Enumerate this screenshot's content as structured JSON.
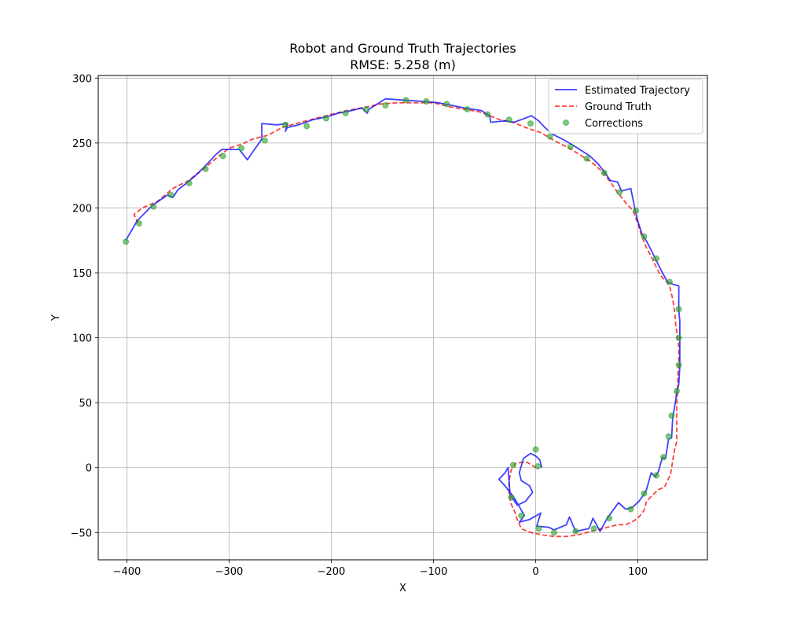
{
  "chart_data": {
    "type": "line",
    "title": "Robot and Ground Truth Trajectories",
    "subtitle": "RMSE: 5.258 (m)",
    "xlabel": "X",
    "ylabel": "Y",
    "xlim": [
      -428,
      168
    ],
    "ylim": [
      -71,
      302
    ],
    "xticks": [
      -400,
      -300,
      -200,
      -100,
      0,
      100
    ],
    "xtick_labels": [
      "−400",
      "−300",
      "−200",
      "−100",
      "0",
      "100"
    ],
    "yticks": [
      -50,
      0,
      50,
      100,
      150,
      200,
      250,
      300
    ],
    "ytick_labels": [
      "−50",
      "0",
      "50",
      "100",
      "150",
      "200",
      "250",
      "300"
    ],
    "grid": true,
    "legend_position": "top-right",
    "series": [
      {
        "name": "Estimated Trajectory",
        "style": "solid",
        "color": "#0000ff",
        "points": [
          [
            6,
            0
          ],
          [
            4,
            6
          ],
          [
            0,
            9
          ],
          [
            -5,
            11
          ],
          [
            -12,
            7
          ],
          [
            -16,
            -4
          ],
          [
            -14,
            -10
          ],
          [
            -6,
            -14
          ],
          [
            -3,
            -19
          ],
          [
            -10,
            -26
          ],
          [
            -18,
            -29
          ],
          [
            -25,
            -21
          ],
          [
            -27,
            0
          ],
          [
            -30,
            -4
          ],
          [
            -36,
            -9
          ],
          [
            -30,
            -14
          ],
          [
            -22,
            -22
          ],
          [
            -16,
            -30
          ],
          [
            -11,
            -37
          ],
          [
            -16,
            -42
          ],
          [
            -6,
            -40
          ],
          [
            5,
            -35
          ],
          [
            1,
            -45
          ],
          [
            13,
            -46
          ],
          [
            18,
            -48
          ],
          [
            30,
            -44
          ],
          [
            33,
            -38
          ],
          [
            39,
            -49
          ],
          [
            52,
            -47
          ],
          [
            56,
            -39
          ],
          [
            63,
            -49
          ],
          [
            70,
            -39
          ],
          [
            81,
            -27
          ],
          [
            88,
            -32
          ],
          [
            94,
            -31
          ],
          [
            101,
            -26
          ],
          [
            108,
            -18
          ],
          [
            113,
            -4
          ],
          [
            117,
            -7
          ],
          [
            120,
            -3
          ],
          [
            124,
            8
          ],
          [
            127,
            7
          ],
          [
            130,
            22
          ],
          [
            133,
            23
          ],
          [
            134,
            38
          ],
          [
            137,
            52
          ],
          [
            138,
            59
          ],
          [
            140,
            64
          ],
          [
            141,
            78
          ],
          [
            141,
            100
          ],
          [
            141,
            113
          ],
          [
            140,
            121
          ],
          [
            140,
            140
          ],
          [
            135,
            141
          ],
          [
            129,
            143
          ],
          [
            124,
            150
          ],
          [
            117,
            161
          ],
          [
            112,
            169
          ],
          [
            108,
            175
          ],
          [
            104,
            180
          ],
          [
            99,
            192
          ],
          [
            93,
            215
          ],
          [
            84,
            213
          ],
          [
            80,
            220
          ],
          [
            73,
            221
          ],
          [
            68,
            227
          ],
          [
            61,
            234
          ],
          [
            53,
            240
          ],
          [
            45,
            244
          ],
          [
            35,
            249
          ],
          [
            26,
            253
          ],
          [
            16,
            257
          ],
          [
            9,
            262
          ],
          [
            3,
            267
          ],
          [
            -4,
            271
          ],
          [
            -21,
            266
          ],
          [
            -30,
            267
          ],
          [
            -44,
            266
          ],
          [
            -45,
            271
          ],
          [
            -53,
            275
          ],
          [
            -62,
            276
          ],
          [
            -70,
            277
          ],
          [
            -82,
            279
          ],
          [
            -95,
            281
          ],
          [
            -110,
            282
          ],
          [
            -128,
            283
          ],
          [
            -147,
            284
          ],
          [
            -163,
            276
          ],
          [
            -165,
            273
          ],
          [
            -170,
            277
          ],
          [
            -180,
            275
          ],
          [
            -193,
            273
          ],
          [
            -205,
            270
          ],
          [
            -218,
            268
          ],
          [
            -232,
            264
          ],
          [
            -243,
            262
          ],
          [
            -245,
            259
          ],
          [
            -243,
            265
          ],
          [
            -253,
            264
          ],
          [
            -268,
            265
          ],
          [
            -268,
            253
          ],
          [
            -277,
            243
          ],
          [
            -282,
            237
          ],
          [
            -290,
            245
          ],
          [
            -307,
            245
          ],
          [
            -313,
            241
          ],
          [
            -320,
            235
          ],
          [
            -330,
            227
          ],
          [
            -340,
            220
          ],
          [
            -350,
            214
          ],
          [
            -355,
            208
          ],
          [
            -360,
            210
          ],
          [
            -375,
            202
          ],
          [
            -390,
            190
          ],
          [
            -401,
            175
          ]
        ]
      },
      {
        "name": "Ground Truth",
        "style": "dashed",
        "color": "#ff0000",
        "points": [
          [
            -389,
            188
          ],
          [
            -393,
            195
          ],
          [
            -385,
            200
          ],
          [
            -370,
            205
          ],
          [
            -355,
            215
          ],
          [
            -340,
            221
          ],
          [
            -325,
            230
          ],
          [
            -310,
            240
          ],
          [
            -300,
            246
          ],
          [
            -288,
            249
          ],
          [
            -277,
            253
          ],
          [
            -262,
            256
          ],
          [
            -248,
            262
          ],
          [
            -230,
            266
          ],
          [
            -215,
            269
          ],
          [
            -200,
            272
          ],
          [
            -185,
            275
          ],
          [
            -170,
            277
          ],
          [
            -152,
            280
          ],
          [
            -135,
            281
          ],
          [
            -118,
            281
          ],
          [
            -100,
            281
          ],
          [
            -85,
            278
          ],
          [
            -70,
            276
          ],
          [
            -55,
            274
          ],
          [
            -45,
            271
          ],
          [
            -35,
            268
          ],
          [
            -22,
            266
          ],
          [
            -10,
            262
          ],
          [
            5,
            258
          ],
          [
            20,
            251
          ],
          [
            33,
            246
          ],
          [
            45,
            240
          ],
          [
            55,
            235
          ],
          [
            65,
            228
          ],
          [
            73,
            220
          ],
          [
            80,
            212
          ],
          [
            87,
            205
          ],
          [
            95,
            198
          ],
          [
            100,
            188
          ],
          [
            103,
            180
          ],
          [
            108,
            170
          ],
          [
            112,
            164
          ],
          [
            117,
            156
          ],
          [
            122,
            148
          ],
          [
            128,
            143
          ],
          [
            131,
            140
          ],
          [
            134,
            130
          ],
          [
            136,
            120
          ],
          [
            137,
            110
          ],
          [
            139,
            100
          ],
          [
            140,
            92
          ],
          [
            140,
            80
          ],
          [
            139,
            70
          ],
          [
            139,
            60
          ],
          [
            138,
            50
          ],
          [
            138,
            40
          ],
          [
            138,
            30
          ],
          [
            138,
            20
          ],
          [
            136,
            14
          ],
          [
            135,
            10
          ],
          [
            133,
            0
          ],
          [
            132,
            -5
          ],
          [
            129,
            -10
          ],
          [
            126,
            -15
          ],
          [
            120,
            -17
          ],
          [
            112,
            -23
          ],
          [
            108,
            -27
          ],
          [
            106,
            -33
          ],
          [
            101,
            -38
          ],
          [
            96,
            -41
          ],
          [
            88,
            -44
          ],
          [
            80,
            -44
          ],
          [
            70,
            -46
          ],
          [
            60,
            -48
          ],
          [
            50,
            -50
          ],
          [
            40,
            -52
          ],
          [
            30,
            -53
          ],
          [
            18,
            -53
          ],
          [
            8,
            -52
          ],
          [
            -5,
            -50
          ],
          [
            -14,
            -47
          ],
          [
            -18,
            -40
          ],
          [
            -20,
            -35
          ],
          [
            -24,
            -28
          ],
          [
            -26,
            -20
          ],
          [
            -26,
            -10
          ],
          [
            -24,
            -2
          ],
          [
            -20,
            3
          ],
          [
            -14,
            4
          ],
          [
            -8,
            4
          ],
          [
            -4,
            2
          ],
          [
            0,
            0
          ]
        ]
      }
    ],
    "corrections": {
      "name": "Corrections",
      "color": "#2ca02c",
      "points": [
        [
          -401,
          174
        ],
        [
          -388,
          188
        ],
        [
          -374,
          201
        ],
        [
          -357,
          210
        ],
        [
          -339,
          219
        ],
        [
          -323,
          230
        ],
        [
          -306,
          240
        ],
        [
          -288,
          246
        ],
        [
          -265,
          252
        ],
        [
          -245,
          264
        ],
        [
          -224,
          263
        ],
        [
          -205,
          269
        ],
        [
          -186,
          273
        ],
        [
          -166,
          276
        ],
        [
          -147,
          279
        ],
        [
          -127,
          283
        ],
        [
          -107,
          282
        ],
        [
          -87,
          280
        ],
        [
          -67,
          276
        ],
        [
          -47,
          272
        ],
        [
          -26,
          268
        ],
        [
          -5,
          265
        ],
        [
          14,
          255
        ],
        [
          34,
          247
        ],
        [
          50,
          238
        ],
        [
          67,
          227
        ],
        [
          82,
          212
        ],
        [
          98,
          198
        ],
        [
          106,
          178
        ],
        [
          118,
          161
        ],
        [
          131,
          143
        ],
        [
          140,
          122
        ],
        [
          140,
          100
        ],
        [
          140,
          79
        ],
        [
          138,
          59
        ],
        [
          133,
          40
        ],
        [
          130,
          24
        ],
        [
          125,
          8
        ],
        [
          118,
          -6
        ],
        [
          106,
          -20
        ],
        [
          93,
          -32
        ],
        [
          72,
          -39
        ],
        [
          57,
          -47
        ],
        [
          39,
          -49
        ],
        [
          18,
          -50
        ],
        [
          3,
          -47
        ],
        [
          -14,
          -37
        ],
        [
          -24,
          -23
        ],
        [
          -22,
          2
        ],
        [
          0,
          14
        ],
        [
          2,
          1
        ]
      ]
    }
  }
}
